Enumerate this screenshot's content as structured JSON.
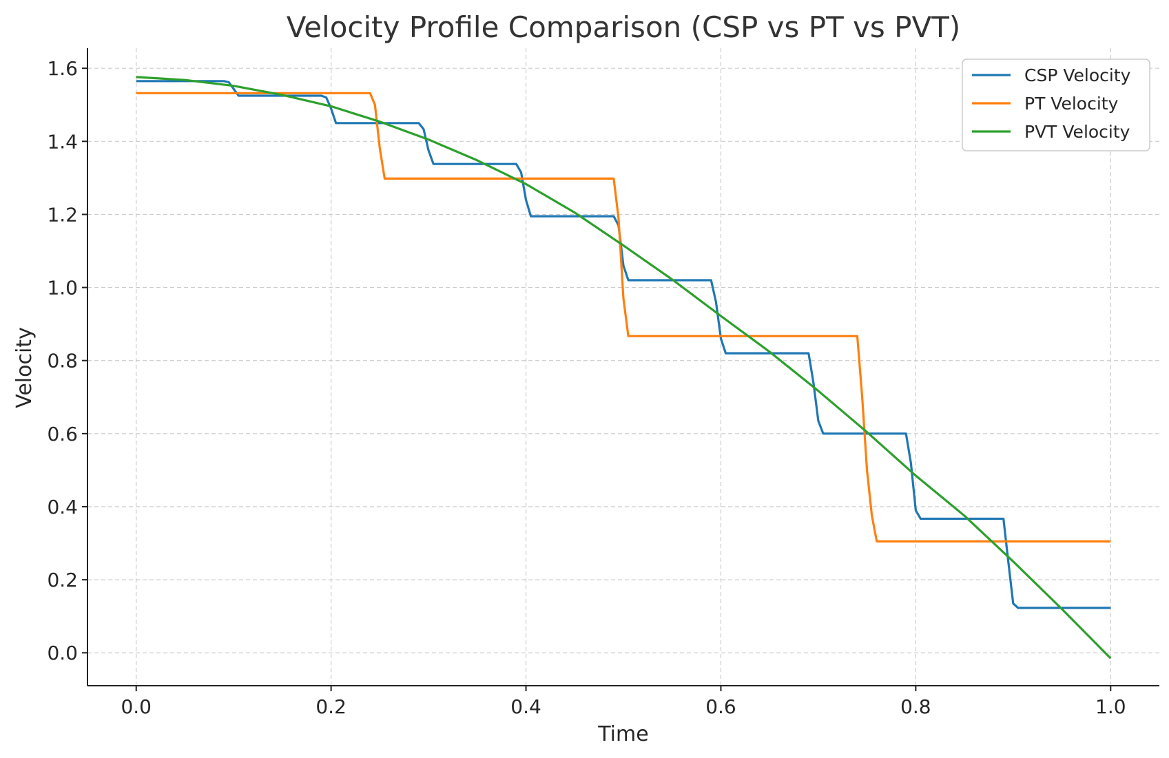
{
  "chart_data": {
    "type": "line",
    "title": "Velocity Profile Comparison (CSP vs PT vs PVT)",
    "xlabel": "Time",
    "ylabel": "Velocity",
    "xlim": [
      -0.05,
      1.05
    ],
    "ylim": [
      -0.09,
      1.655
    ],
    "grid": true,
    "legend_position": "top-right",
    "x_ticks": [
      0.0,
      0.2,
      0.4,
      0.6,
      0.8,
      1.0
    ],
    "x_tick_labels": [
      "0.0",
      "0.2",
      "0.4",
      "0.6",
      "0.8",
      "1.0"
    ],
    "y_ticks": [
      0.0,
      0.2,
      0.4,
      0.6,
      0.8,
      1.0,
      1.2,
      1.4,
      1.6
    ],
    "y_tick_labels": [
      "0.0",
      "0.2",
      "0.4",
      "0.6",
      "0.8",
      "1.0",
      "1.2",
      "1.4",
      "1.6"
    ],
    "series": [
      {
        "name": "CSP Velocity",
        "color": "#1f77b4",
        "x": [
          0.0,
          0.09,
          0.095,
          0.105,
          0.19,
          0.195,
          0.2,
          0.205,
          0.29,
          0.295,
          0.3,
          0.305,
          0.39,
          0.395,
          0.4,
          0.405,
          0.49,
          0.495,
          0.5,
          0.505,
          0.59,
          0.595,
          0.6,
          0.605,
          0.69,
          0.695,
          0.7,
          0.705,
          0.79,
          0.795,
          0.8,
          0.805,
          0.89,
          0.895,
          0.9,
          0.905,
          1.0
        ],
        "values": [
          1.565,
          1.565,
          1.562,
          1.525,
          1.525,
          1.52,
          1.49,
          1.45,
          1.45,
          1.433,
          1.375,
          1.338,
          1.338,
          1.315,
          1.24,
          1.195,
          1.195,
          1.17,
          1.06,
          1.02,
          1.02,
          0.96,
          0.86,
          0.82,
          0.82,
          0.74,
          0.635,
          0.6,
          0.6,
          0.52,
          0.39,
          0.367,
          0.367,
          0.25,
          0.135,
          0.123,
          0.123
        ]
      },
      {
        "name": "PT Velocity",
        "color": "#ff7f0e",
        "x": [
          0.0,
          0.24,
          0.245,
          0.25,
          0.255,
          0.49,
          0.495,
          0.5,
          0.505,
          0.74,
          0.745,
          0.75,
          0.755,
          0.76,
          1.0
        ],
        "values": [
          1.532,
          1.532,
          1.5,
          1.38,
          1.298,
          1.298,
          1.19,
          0.97,
          0.867,
          0.867,
          0.7,
          0.5,
          0.375,
          0.305,
          0.305
        ]
      },
      {
        "name": "PVT Velocity",
        "color": "#2ca02c",
        "x": [
          0.0,
          0.05,
          0.1,
          0.15,
          0.2,
          0.25,
          0.3,
          0.35,
          0.4,
          0.45,
          0.5,
          0.55,
          0.6,
          0.65,
          0.7,
          0.75,
          0.8,
          0.85,
          0.9,
          0.95,
          1.0
        ],
        "values": [
          1.576,
          1.568,
          1.552,
          1.527,
          1.496,
          1.454,
          1.405,
          1.348,
          1.283,
          1.205,
          1.115,
          1.022,
          0.922,
          0.824,
          0.717,
          0.604,
          0.485,
          0.375,
          0.25,
          0.12,
          -0.015
        ]
      }
    ]
  }
}
